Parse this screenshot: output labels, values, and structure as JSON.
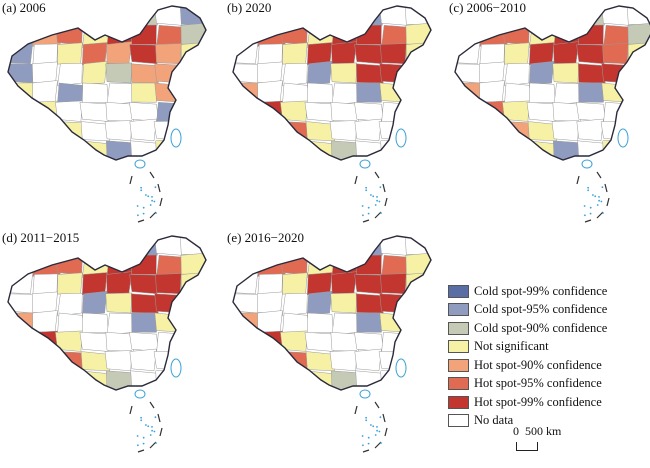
{
  "panels": [
    {
      "id": "a",
      "label": "(a) 2006",
      "scheme": [
        1,
        0,
        3,
        4,
        4,
        2,
        0,
        1,
        3,
        4,
        5,
        3,
        6,
        6,
        5,
        2,
        1,
        0,
        3,
        5,
        4,
        6,
        4,
        3,
        1,
        0,
        0,
        3,
        2,
        4,
        4,
        5,
        3,
        0,
        1,
        0,
        0,
        3,
        4,
        5,
        5,
        3,
        0,
        0,
        0,
        0,
        1,
        3,
        3,
        3,
        3,
        0,
        0,
        0,
        0,
        0,
        0,
        3,
        3,
        3
      ]
    },
    {
      "id": "b",
      "label": "(b) 2020",
      "scheme": [
        2,
        0,
        0,
        1,
        2,
        1,
        0,
        0,
        3,
        5,
        5,
        3,
        6,
        6,
        5,
        3,
        0,
        0,
        3,
        6,
        6,
        6,
        6,
        3,
        0,
        0,
        0,
        1,
        3,
        6,
        6,
        6,
        4,
        0,
        0,
        0,
        0,
        1,
        3,
        6,
        6,
        6,
        3,
        0,
        0,
        0,
        0,
        1,
        3,
        4,
        5,
        3,
        0,
        0,
        0,
        0,
        0,
        3,
        3,
        3
      ]
    },
    {
      "id": "c",
      "label": "(c) 2006−2010",
      "scheme": [
        1,
        0,
        3,
        3,
        4,
        2,
        0,
        0,
        3,
        5,
        5,
        3,
        6,
        6,
        5,
        2,
        0,
        0,
        3,
        6,
        6,
        6,
        5,
        3,
        0,
        0,
        0,
        1,
        3,
        6,
        6,
        6,
        4,
        0,
        0,
        0,
        0,
        1,
        3,
        5,
        6,
        5,
        3,
        0,
        0,
        0,
        0,
        1,
        3,
        4,
        4,
        3,
        0,
        0,
        0,
        0,
        0,
        3,
        3,
        3
      ]
    },
    {
      "id": "d",
      "label": "(d) 2011−2015",
      "scheme": [
        2,
        0,
        0,
        1,
        2,
        1,
        0,
        0,
        3,
        5,
        5,
        3,
        6,
        6,
        5,
        3,
        0,
        0,
        3,
        6,
        6,
        6,
        6,
        3,
        0,
        0,
        0,
        1,
        3,
        6,
        6,
        6,
        4,
        0,
        0,
        0,
        0,
        1,
        3,
        6,
        6,
        6,
        3,
        0,
        0,
        0,
        0,
        1,
        3,
        4,
        5,
        3,
        0,
        0,
        0,
        0,
        0,
        3,
        3,
        3
      ]
    },
    {
      "id": "e",
      "label": "(e) 2016−2020",
      "scheme": [
        2,
        0,
        0,
        1,
        2,
        1,
        0,
        0,
        3,
        5,
        5,
        3,
        6,
        6,
        5,
        3,
        0,
        0,
        3,
        6,
        6,
        6,
        6,
        3,
        0,
        0,
        0,
        1,
        3,
        6,
        6,
        6,
        4,
        0,
        0,
        0,
        0,
        1,
        3,
        6,
        6,
        6,
        3,
        0,
        0,
        0,
        0,
        1,
        3,
        4,
        5,
        3,
        0,
        0,
        0,
        0,
        0,
        3,
        3,
        3
      ]
    }
  ],
  "legend": [
    {
      "label": "Cold spot-99% confidence",
      "color": "#5a6ea6"
    },
    {
      "label": "Cold spot-95% confidence",
      "color": "#8f9cbf"
    },
    {
      "label": "Cold spot-90% confidence",
      "color": "#c4cab6"
    },
    {
      "label": "Not significant",
      "color": "#f6f1a4"
    },
    {
      "label": "Hot spot-90% confidence",
      "color": "#f2a37a"
    },
    {
      "label": "Hot spot-95% confidence",
      "color": "#e06a52"
    },
    {
      "label": "Hot spot-99% confidence",
      "color": "#c2362f"
    },
    {
      "label": "No data",
      "color": "#ffffff"
    }
  ],
  "scalebar": {
    "label": "0  500 km"
  }
}
